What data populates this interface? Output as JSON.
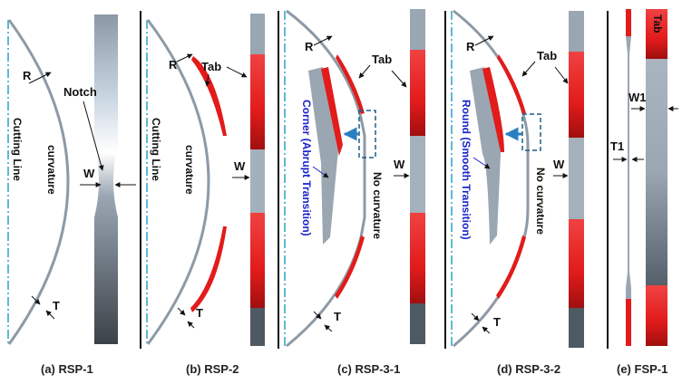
{
  "panels": [
    {
      "caption": "(a) RSP-1",
      "labels": {
        "r": "R",
        "notch": "Notch",
        "cutting": "Cutting Line",
        "curvature": "curvature",
        "w": "W",
        "t": "T"
      }
    },
    {
      "caption": "(b) RSP-2",
      "labels": {
        "r": "R",
        "tab": "Tab",
        "cutting": "Cutting Line",
        "curvature": "curvature",
        "w": "W",
        "t": "T"
      }
    },
    {
      "caption": "(c) RSP-3-1",
      "labels": {
        "r": "R",
        "tab": "Tab",
        "transition": "Corner (Abrupt Transition)",
        "nocurv": "No curvature",
        "w": "W",
        "t": "T"
      }
    },
    {
      "caption": "(d) RSP-3-2",
      "labels": {
        "r": "R",
        "tab": "Tab",
        "transition": "Round (Smooth Transition)",
        "nocurv": "No curvature",
        "w": "W",
        "t": "T"
      }
    },
    {
      "caption": "(e) FSP-1",
      "labels": {
        "tab": "Tab",
        "w1": "W1",
        "t1": "T1"
      }
    }
  ],
  "colors": {
    "tab_red": "#e21b1b",
    "metal": "#8e9aa6",
    "axis_blue": "#2aa0c8",
    "arrow_blue": "#2a7fc0",
    "label_blue": "#1a22c8"
  }
}
